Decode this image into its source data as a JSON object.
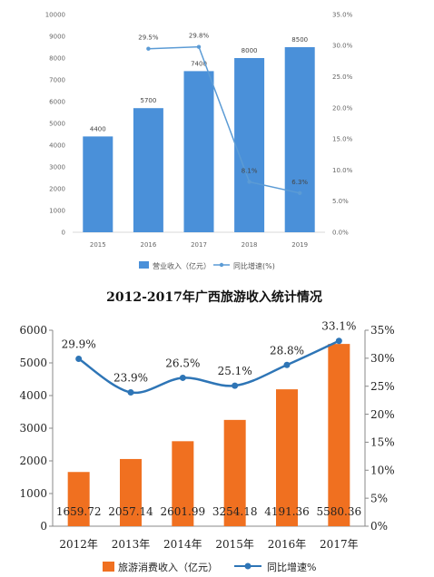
{
  "chart_data": [
    {
      "type": "bar",
      "title": "",
      "categories": [
        "2015",
        "2016",
        "2017",
        "2018",
        "2019"
      ],
      "series": [
        {
          "name": "营业收入（亿元）",
          "kind": "bar",
          "axis": "left",
          "color": "#4a90d9",
          "values": [
            4400,
            5700,
            7400,
            8000,
            8500
          ],
          "labels": [
            "4400",
            "5700",
            "7400",
            "8000",
            "8500"
          ]
        },
        {
          "name": "同比增速(%)",
          "kind": "line",
          "axis": "right",
          "color": "#5b9bd5",
          "values": [
            null,
            29.5,
            29.8,
            8.1,
            6.3
          ],
          "labels": [
            "",
            "29.5%",
            "29.8%",
            "8.1%",
            "6.3%"
          ]
        }
      ],
      "y_left": {
        "min": 0,
        "max": 10000,
        "ticks": [
          "0",
          "1000",
          "2000",
          "3000",
          "4000",
          "5000",
          "6000",
          "7000",
          "8000",
          "9000",
          "10000"
        ]
      },
      "y_right": {
        "min": 0,
        "max": 35,
        "ticks": [
          "0.0%",
          "5.0%",
          "10.0%",
          "15.0%",
          "20.0%",
          "25.0%",
          "30.0%",
          "35.0%"
        ]
      },
      "legend": {
        "position": "bottom",
        "items": [
          "营业收入（亿元）",
          "同比增速(%)"
        ]
      },
      "grid": false
    },
    {
      "type": "bar",
      "title": "2012-2017年广西旅游收入统计情况",
      "categories": [
        "2012年",
        "2013年",
        "2014年",
        "2015年",
        "2016年",
        "2017年"
      ],
      "series": [
        {
          "name": "旅游消费收入（亿元）",
          "kind": "bar",
          "axis": "left",
          "color": "#f07020",
          "values": [
            1659.72,
            2057.14,
            2601.99,
            3254.18,
            4191.36,
            5580.36
          ],
          "labels": [
            "1659.72",
            "2057.14",
            "2601.99",
            "3254.18",
            "4191.36",
            "5580.36"
          ]
        },
        {
          "name": "同比增速%",
          "kind": "line",
          "axis": "right",
          "color": "#2e75b6",
          "values": [
            29.9,
            23.9,
            26.5,
            25.1,
            28.8,
            33.1
          ],
          "labels": [
            "29.9%",
            "23.9%",
            "26.5%",
            "25.1%",
            "28.8%",
            "33.1%"
          ]
        }
      ],
      "y_left": {
        "min": 0,
        "max": 6000,
        "ticks": [
          "0",
          "1000",
          "2000",
          "3000",
          "4000",
          "5000",
          "6000"
        ]
      },
      "y_right": {
        "min": 0,
        "max": 35,
        "ticks": [
          "0%",
          "5%",
          "10%",
          "15%",
          "20%",
          "25%",
          "30%",
          "35%"
        ]
      },
      "legend": {
        "position": "bottom",
        "items": [
          "旅游消费收入（亿元）",
          "同比增速%"
        ]
      },
      "grid": false
    }
  ]
}
